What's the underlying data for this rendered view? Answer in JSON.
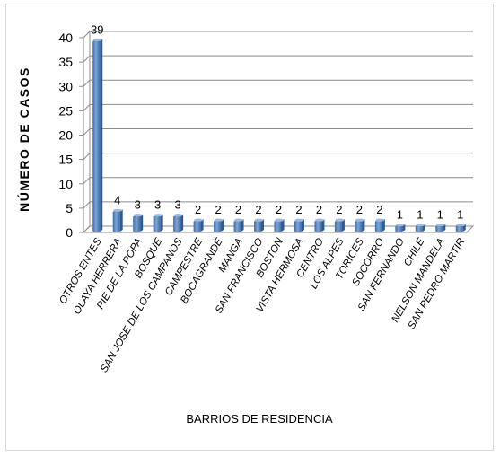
{
  "chart_data": {
    "type": "bar",
    "xlabel": "BARRIOS DE RESIDENCIA",
    "ylabel": "NÚMERO DE CASOS",
    "ylim": [
      0,
      40
    ],
    "yticks": [
      0,
      5,
      10,
      15,
      20,
      25,
      30,
      35,
      40
    ],
    "grid": true,
    "bar_color": "#4f81bd",
    "categories": [
      "OTROS ENTES",
      "OLAYA HERRERA",
      "PIE DE LA POPA",
      "BOSQUE",
      "SAN JOSE DE LOS CAMPANOS",
      "CAMPESTRE",
      "BOCAGRANDE",
      "MANGA",
      "SAN FRANCISCO",
      "BOSTON",
      "VISTA HERMOSA",
      "CENTRO",
      "LOS ALPES",
      "TORICES",
      "SOCORRO",
      "SAN FERNANDO",
      "CHILE",
      "NELSON MANDELA",
      "SAN PEDRO MARTIR"
    ],
    "values": [
      39,
      4,
      3,
      3,
      3,
      2,
      2,
      2,
      2,
      2,
      2,
      2,
      2,
      2,
      2,
      1,
      1,
      1,
      1
    ]
  }
}
